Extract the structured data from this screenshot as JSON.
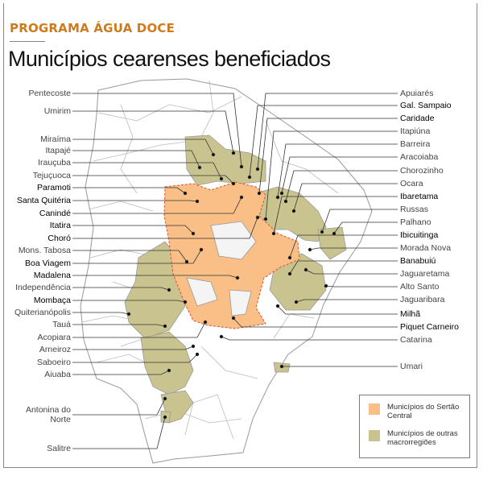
{
  "header": {
    "kicker": "PROGRAMA ÁGUA DOCE",
    "title": "Municípios cearenses beneficiados"
  },
  "colors": {
    "sertao_central": "#f9bf86",
    "outras": "#c9c48f",
    "kicker": "#d07a1e"
  },
  "labels_left": [
    {
      "name": "Pentecoste",
      "group": "outras"
    },
    {
      "name": "Umirim",
      "group": "outras"
    },
    {
      "name": "Miraíma",
      "group": "outras"
    },
    {
      "name": "Itapajé",
      "group": "outras"
    },
    {
      "name": "Irauçuba",
      "group": "outras"
    },
    {
      "name": "Tejuçuoca",
      "group": "outras"
    },
    {
      "name": "Paramoti",
      "group": "sertao_central"
    },
    {
      "name": "Santa Quitéria",
      "group": "sertao_central"
    },
    {
      "name": "Canindé",
      "group": "sertao_central"
    },
    {
      "name": "Itatira",
      "group": "sertao_central"
    },
    {
      "name": "Choró",
      "group": "sertao_central"
    },
    {
      "name": "Mons. Tabosa",
      "group": "outras"
    },
    {
      "name": "Boa Viagem",
      "group": "sertao_central"
    },
    {
      "name": "Madalena",
      "group": "sertao_central"
    },
    {
      "name": "Independência",
      "group": "outras"
    },
    {
      "name": "Mombaça",
      "group": "sertao_central"
    },
    {
      "name": "Quiterianópolis",
      "group": "outras"
    },
    {
      "name": "Tauá",
      "group": "outras"
    },
    {
      "name": "Acopiara",
      "group": "outras"
    },
    {
      "name": "Arneiroz",
      "group": "outras"
    },
    {
      "name": "Saboeiro",
      "group": "outras"
    },
    {
      "name": "Aiuaba",
      "group": "outras"
    },
    {
      "name": "Antonina do Norte",
      "group": "outras"
    },
    {
      "name": "Salitre",
      "group": "outras"
    }
  ],
  "labels_right": [
    {
      "name": "Apuiarés",
      "group": "outras"
    },
    {
      "name": "Gal. Sampaio",
      "group": "sertao_central"
    },
    {
      "name": "Caridade",
      "group": "sertao_central"
    },
    {
      "name": "Itapiúna",
      "group": "outras"
    },
    {
      "name": "Barreira",
      "group": "outras"
    },
    {
      "name": "Aracoiaba",
      "group": "outras"
    },
    {
      "name": "Chorozinho",
      "group": "outras"
    },
    {
      "name": "Ocara",
      "group": "outras"
    },
    {
      "name": "Ibaretama",
      "group": "sertao_central"
    },
    {
      "name": "Russas",
      "group": "outras"
    },
    {
      "name": "Palhano",
      "group": "outras"
    },
    {
      "name": "Ibicuitinga",
      "group": "sertao_central"
    },
    {
      "name": "Morada Nova",
      "group": "outras"
    },
    {
      "name": "Banabuiú",
      "group": "sertao_central"
    },
    {
      "name": "Jaguaretama",
      "group": "outras"
    },
    {
      "name": "Alto Santo",
      "group": "outras"
    },
    {
      "name": "Jaguaribara",
      "group": "outras"
    },
    {
      "name": "Milhã",
      "group": "sertao_central"
    },
    {
      "name": "Piquet Carneiro",
      "group": "sertao_central"
    },
    {
      "name": "Catarina",
      "group": "outras"
    },
    {
      "name": "Umari",
      "group": "outras"
    }
  ],
  "legend": {
    "sertao_central": "Municípios do Sertão Central",
    "outras": "Municípios de outras macrorregiões"
  }
}
